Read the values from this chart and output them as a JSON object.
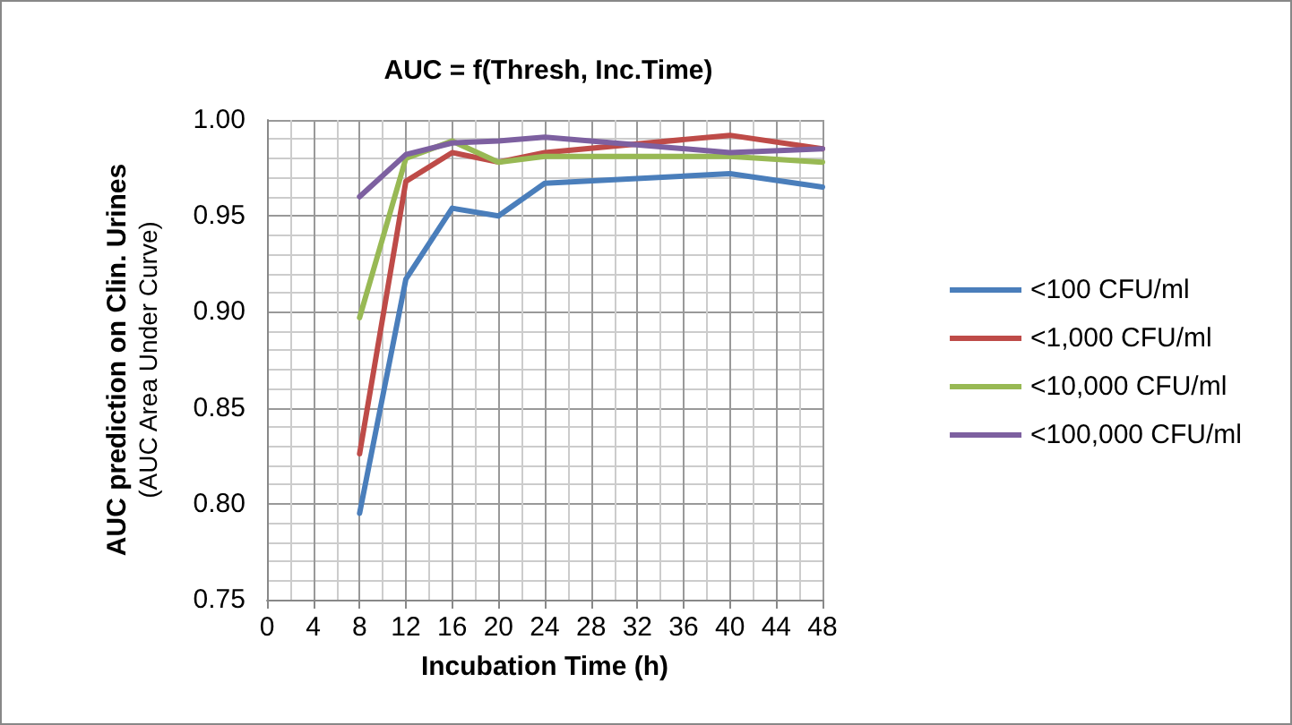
{
  "chart_data": {
    "type": "line",
    "title": "AUC = f(Thresh, Inc.Time)",
    "xlabel": "Incubation Time (h)",
    "ylabel": "AUC prediction on Clin. Urines\n(AUC Area Under Curve)",
    "x": [
      8,
      12,
      16,
      20,
      24,
      40,
      48
    ],
    "series": [
      {
        "name": "<100 CFU/ml",
        "color": "#4a7ebb",
        "values": [
          0.795,
          0.917,
          0.954,
          0.95,
          0.967,
          0.972,
          0.965
        ]
      },
      {
        "name": "<1,000 CFU/ml",
        "color": "#be4b48",
        "values": [
          0.826,
          0.968,
          0.983,
          0.978,
          0.983,
          0.992,
          0.985
        ]
      },
      {
        "name": "<10,000 CFU/ml",
        "color": "#98b954",
        "values": [
          0.897,
          0.98,
          0.989,
          0.978,
          0.981,
          0.981,
          0.978
        ]
      },
      {
        "name": "<100,000 CFU/ml",
        "color": "#7d60a0",
        "values": [
          0.96,
          0.982,
          0.988,
          0.989,
          0.991,
          0.983,
          0.985
        ]
      }
    ],
    "xlim": [
      0,
      48
    ],
    "xticks": [
      0,
      4,
      8,
      12,
      16,
      20,
      24,
      28,
      32,
      36,
      40,
      44,
      48
    ],
    "ylim": [
      0.75,
      1.0
    ],
    "yticks": [
      {
        "value": 0.75,
        "label": "0.75"
      },
      {
        "value": 0.8,
        "label": "0.80"
      },
      {
        "value": 0.85,
        "label": "0.85"
      },
      {
        "value": 0.9,
        "label": "0.90"
      },
      {
        "value": 0.95,
        "label": "0.95"
      },
      {
        "value": 1.0,
        "label": "1.00"
      }
    ],
    "grid": true,
    "legend": "right",
    "marker": "none",
    "line_style": "solid"
  }
}
